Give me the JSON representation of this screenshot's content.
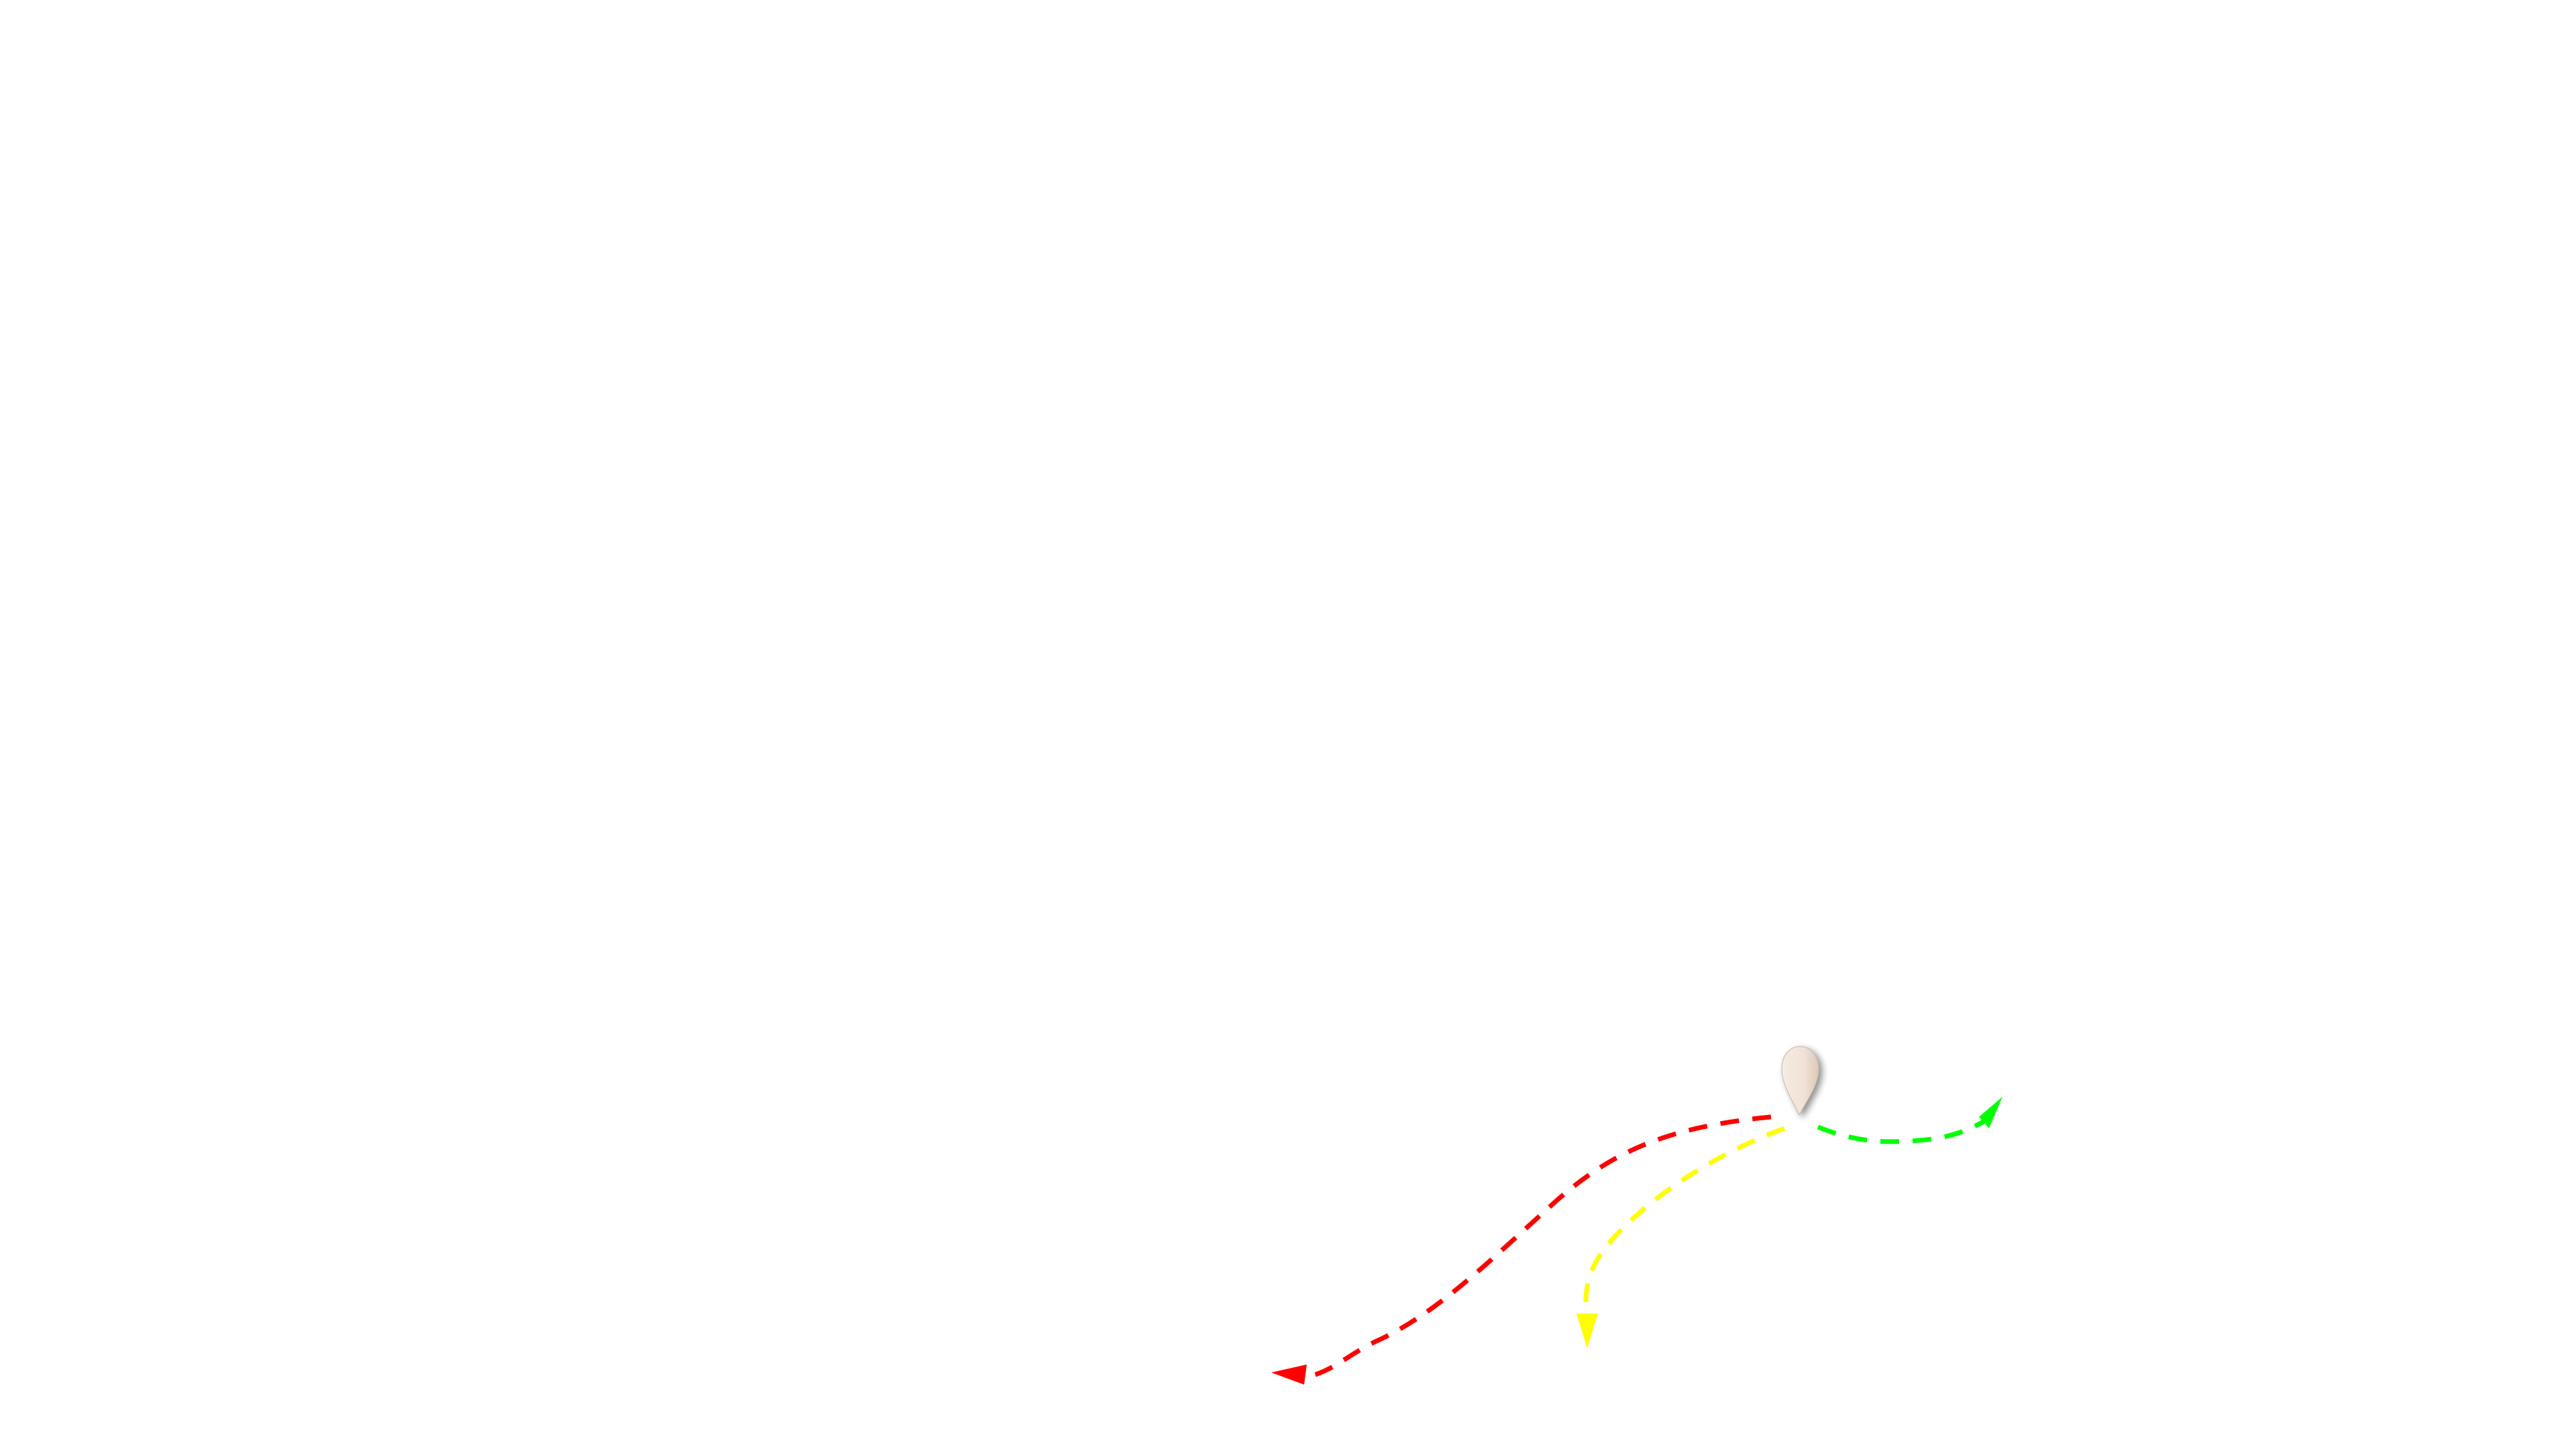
{
  "map": {
    "background_color": "#ffffff",
    "origin_marker": {
      "icon": "map-pin-icon",
      "fill_color": "#f0e2d6",
      "shadow_color": "#8a7a70"
    },
    "routes": [
      {
        "name": "red-route",
        "color": "#ff0000"
      },
      {
        "name": "yellow-route",
        "color": "#ffff00"
      },
      {
        "name": "green-route",
        "color": "#00ff00"
      }
    ]
  }
}
